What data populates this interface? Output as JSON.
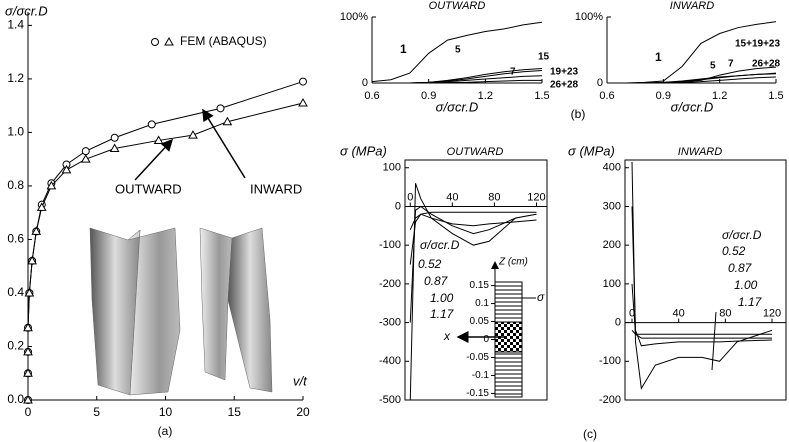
{
  "chart_data": [
    {
      "type": "line",
      "panel_label": "(a)",
      "ylabel": "σ/σcr.D",
      "xlabel": "v/t",
      "legend_label": "FEM (ABAQUS)",
      "xlim": [
        0,
        20
      ],
      "ylim": [
        0,
        1.45
      ],
      "xticks": [
        0,
        5,
        10,
        15,
        20
      ],
      "yticks": [
        {
          "value": 0,
          "label": "0.0"
        },
        0.2,
        0.4,
        0.6,
        0.8,
        {
          "value": 1,
          "label": "1.0"
        },
        1.2,
        1.4
      ],
      "series": [
        {
          "name": "INWARD",
          "marker": "circle",
          "color": "#000000",
          "x": [
            0,
            0,
            0,
            0,
            0.1,
            0.3,
            0.6,
            1.0,
            1.7,
            2.8,
            4.2,
            6.3,
            9.0,
            14.0,
            20.0
          ],
          "values": [
            0,
            0.1,
            0.18,
            0.27,
            0.4,
            0.52,
            0.63,
            0.73,
            0.81,
            0.88,
            0.93,
            0.98,
            1.03,
            1.09,
            1.19
          ]
        },
        {
          "name": "OUTWARD",
          "marker": "triangle",
          "color": "#000000",
          "x": [
            0,
            0,
            0,
            0,
            0.1,
            0.3,
            0.6,
            1.0,
            1.7,
            2.8,
            4.2,
            6.3,
            9.5,
            12.0,
            14.5,
            20.0
          ],
          "values": [
            0,
            0.1,
            0.18,
            0.27,
            0.4,
            0.52,
            0.63,
            0.72,
            0.8,
            0.86,
            0.9,
            0.94,
            0.97,
            0.99,
            1.04,
            1.11
          ]
        }
      ]
    },
    {
      "type": "line",
      "title": "OUTWARD",
      "xlabel": "σ/σcr.D",
      "annotations": [
        "1"
      ],
      "xlim": [
        0.6,
        1.5
      ],
      "ylim": [
        0,
        100
      ],
      "xticks": [
        0.6,
        0.9,
        1.2,
        1.5
      ],
      "yticks": [
        0,
        {
          "value": 100,
          "label": "100%"
        }
      ],
      "x": [
        0.6,
        0.7,
        0.8,
        0.9,
        1.0,
        1.1,
        1.2,
        1.3,
        1.4,
        1.5
      ],
      "series": [
        {
          "name": "5",
          "color": "#000000",
          "values": [
            2,
            5,
            15,
            45,
            65,
            72,
            78,
            82,
            88,
            92
          ]
        },
        {
          "name": "7",
          "color": "#000000",
          "values": [
            0,
            0,
            0,
            1,
            3,
            6,
            10,
            14,
            17,
            19
          ]
        },
        {
          "name": "15",
          "color": "#000000",
          "values": [
            0,
            0,
            0,
            1,
            4,
            8,
            13,
            17,
            20,
            22
          ]
        },
        {
          "name": "19+23",
          "color": "#000000",
          "values": [
            0,
            0,
            0,
            1,
            2,
            4,
            6,
            8,
            10,
            11
          ]
        },
        {
          "name": "26+28",
          "color": "#000000",
          "values": [
            0,
            0,
            0,
            0,
            1,
            1,
            2,
            3,
            4,
            4
          ]
        }
      ]
    },
    {
      "type": "line",
      "title": "INWARD",
      "xlabel": "σ/σcr.D",
      "annotations": [
        "1"
      ],
      "panel_label": "(b)",
      "xlim": [
        0.6,
        1.5
      ],
      "ylim": [
        0,
        100
      ],
      "xticks": [
        0.6,
        0.9,
        1.2,
        1.5
      ],
      "yticks": [
        0,
        {
          "value": 100,
          "label": "100%"
        }
      ],
      "x": [
        0.6,
        0.7,
        0.8,
        0.9,
        1.0,
        1.1,
        1.2,
        1.3,
        1.4,
        1.5
      ],
      "series": [
        {
          "color": "#000000",
          "values": [
            0,
            0,
            1,
            3,
            25,
            60,
            75,
            84,
            89,
            93
          ]
        },
        {
          "name": "5",
          "color": "#000000",
          "values": [
            0,
            0,
            0,
            1,
            3,
            6,
            9,
            11,
            13,
            14
          ]
        },
        {
          "name": "7",
          "color": "#000000",
          "values": [
            0,
            0,
            0,
            1,
            2,
            5,
            8,
            11,
            13,
            15
          ]
        },
        {
          "name": "15+19+23",
          "color": "#000000",
          "values": [
            0,
            0,
            0,
            0,
            2,
            4,
            12,
            18,
            22,
            24
          ]
        },
        {
          "name": "26+28",
          "color": "#000000",
          "values": [
            0,
            0,
            0,
            0,
            1,
            2,
            4,
            6,
            8,
            9
          ]
        }
      ]
    },
    {
      "type": "line",
      "title": "OUTWARD",
      "ylabel": "σ (MPa)",
      "legend_title": "σ/σcr.D",
      "xlim": [
        -5,
        130
      ],
      "ylim": [
        -500,
        120
      ],
      "xticks": [
        0,
        40,
        80,
        120
      ],
      "yticks": [
        100,
        0,
        -100,
        -200,
        -300,
        -400,
        -500
      ],
      "x": [
        0,
        5,
        10,
        20,
        40,
        60,
        75,
        100,
        120
      ],
      "series": [
        {
          "name": "0.52",
          "color": "#000000",
          "values": [
            -60,
            -30,
            -20,
            -15,
            -15,
            -15,
            -15,
            -15,
            -15
          ]
        },
        {
          "name": "0.87",
          "color": "#000000",
          "values": [
            -150,
            -40,
            -20,
            -30,
            -45,
            -50,
            -45,
            -40,
            -35
          ]
        },
        {
          "name": "1.00",
          "color": "#000000",
          "values": [
            -300,
            -10,
            0,
            -20,
            -50,
            -70,
            -60,
            -30,
            -20
          ]
        },
        {
          "name": "1.17",
          "color": "#000000",
          "values": [
            -500,
            60,
            20,
            -30,
            -70,
            -100,
            -90,
            -30,
            -20
          ]
        }
      ],
      "inset": {
        "zlabel": "Z (cm)",
        "zlim": [
          -0.16,
          0.16
        ],
        "zticks": [
          0.15,
          0.1,
          0.05,
          0,
          -0.05,
          -0.1,
          -0.15
        ],
        "stress_label": "σ",
        "x_label": "x"
      }
    },
    {
      "type": "line",
      "title": "INWARD",
      "ylabel": "σ (MPa)",
      "legend_title": "σ/σcr.D",
      "panel_label": "(c)",
      "xlim": [
        -6,
        132
      ],
      "ylim": [
        -200,
        420
      ],
      "xticks": [
        0,
        40,
        80,
        120
      ],
      "yticks": [
        400,
        300,
        200,
        100,
        0,
        -100,
        -200
      ],
      "x": [
        0,
        3,
        8,
        20,
        40,
        60,
        75,
        90,
        120
      ],
      "series": [
        {
          "name": "0.52",
          "color": "#000000",
          "values": [
            -20,
            -30,
            -30,
            -30,
            -30,
            -30,
            -30,
            -30,
            -30
          ]
        },
        {
          "name": "0.87",
          "color": "#000000",
          "values": [
            100,
            -30,
            -40,
            -40,
            -40,
            -40,
            -40,
            -40,
            -40
          ]
        },
        {
          "name": "1.00",
          "color": "#000000",
          "values": [
            300,
            -20,
            -60,
            -55,
            -50,
            -50,
            -50,
            -48,
            -45
          ]
        },
        {
          "name": "1.17",
          "color": "#000000",
          "values": [
            415,
            -50,
            -170,
            -110,
            -90,
            -90,
            -100,
            -50,
            -20
          ]
        }
      ]
    }
  ]
}
